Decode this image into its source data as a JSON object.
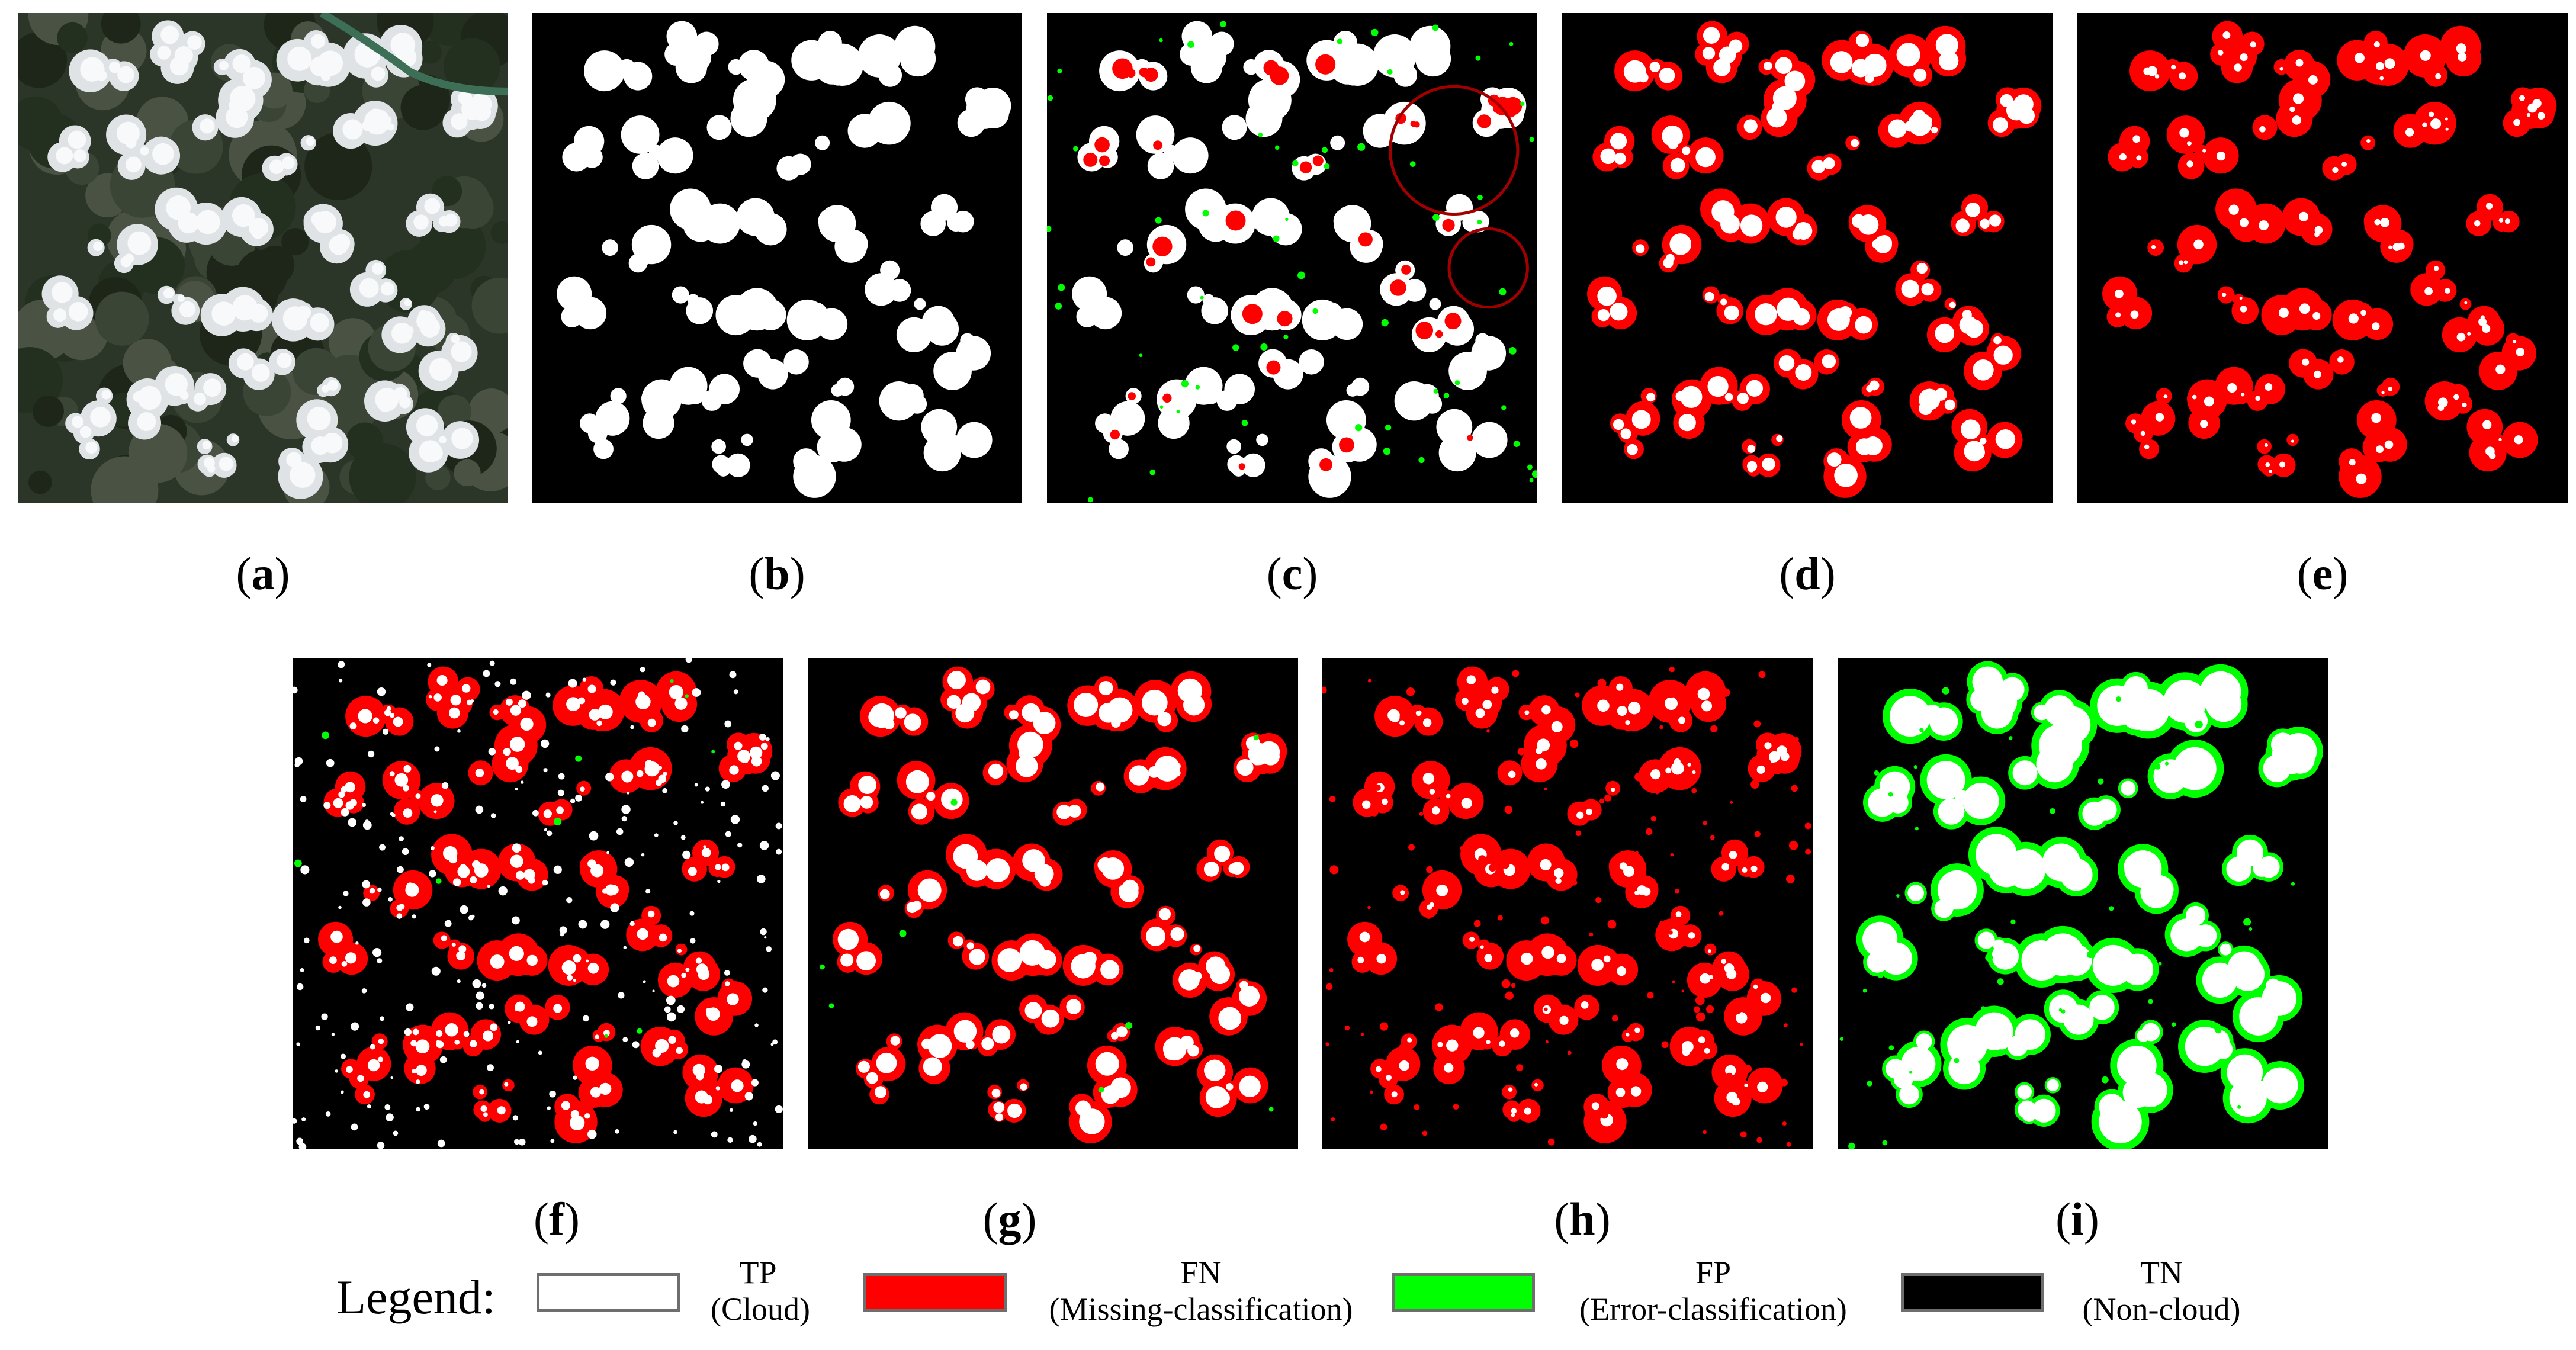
{
  "panels": [
    {
      "id": "a",
      "label": "a",
      "kind": "satellite"
    },
    {
      "id": "b",
      "label": "b",
      "kind": "ground-truth"
    },
    {
      "id": "c",
      "label": "c",
      "kind": "result-mixed"
    },
    {
      "id": "d",
      "label": "d",
      "kind": "result-blob-fn"
    },
    {
      "id": "e",
      "label": "e",
      "kind": "result-mostly-fn"
    },
    {
      "id": "f",
      "label": "f",
      "kind": "result-speckled-fn"
    },
    {
      "id": "g",
      "label": "g",
      "kind": "result-blob-fn"
    },
    {
      "id": "h",
      "label": "h",
      "kind": "result-mostly-fn"
    },
    {
      "id": "i",
      "label": "i",
      "kind": "result-fp"
    }
  ],
  "legend": {
    "title": "Legend:",
    "items": [
      {
        "line1": "TP",
        "line2": "(Cloud)",
        "color": "#ffffff"
      },
      {
        "line1": "FN",
        "line2": "(Missing-classification)",
        "color": "#ff0000"
      },
      {
        "line1": "FP",
        "line2": "(Error-classification)",
        "color": "#00ff00"
      },
      {
        "line1": "TN",
        "line2": "(Non-cloud)",
        "color": "#000000"
      }
    ]
  },
  "colors": {
    "tp": "#ffffff",
    "fn": "#ff0000",
    "fp": "#00ff00",
    "tn": "#000000",
    "highlight_circle": "#a00000"
  }
}
